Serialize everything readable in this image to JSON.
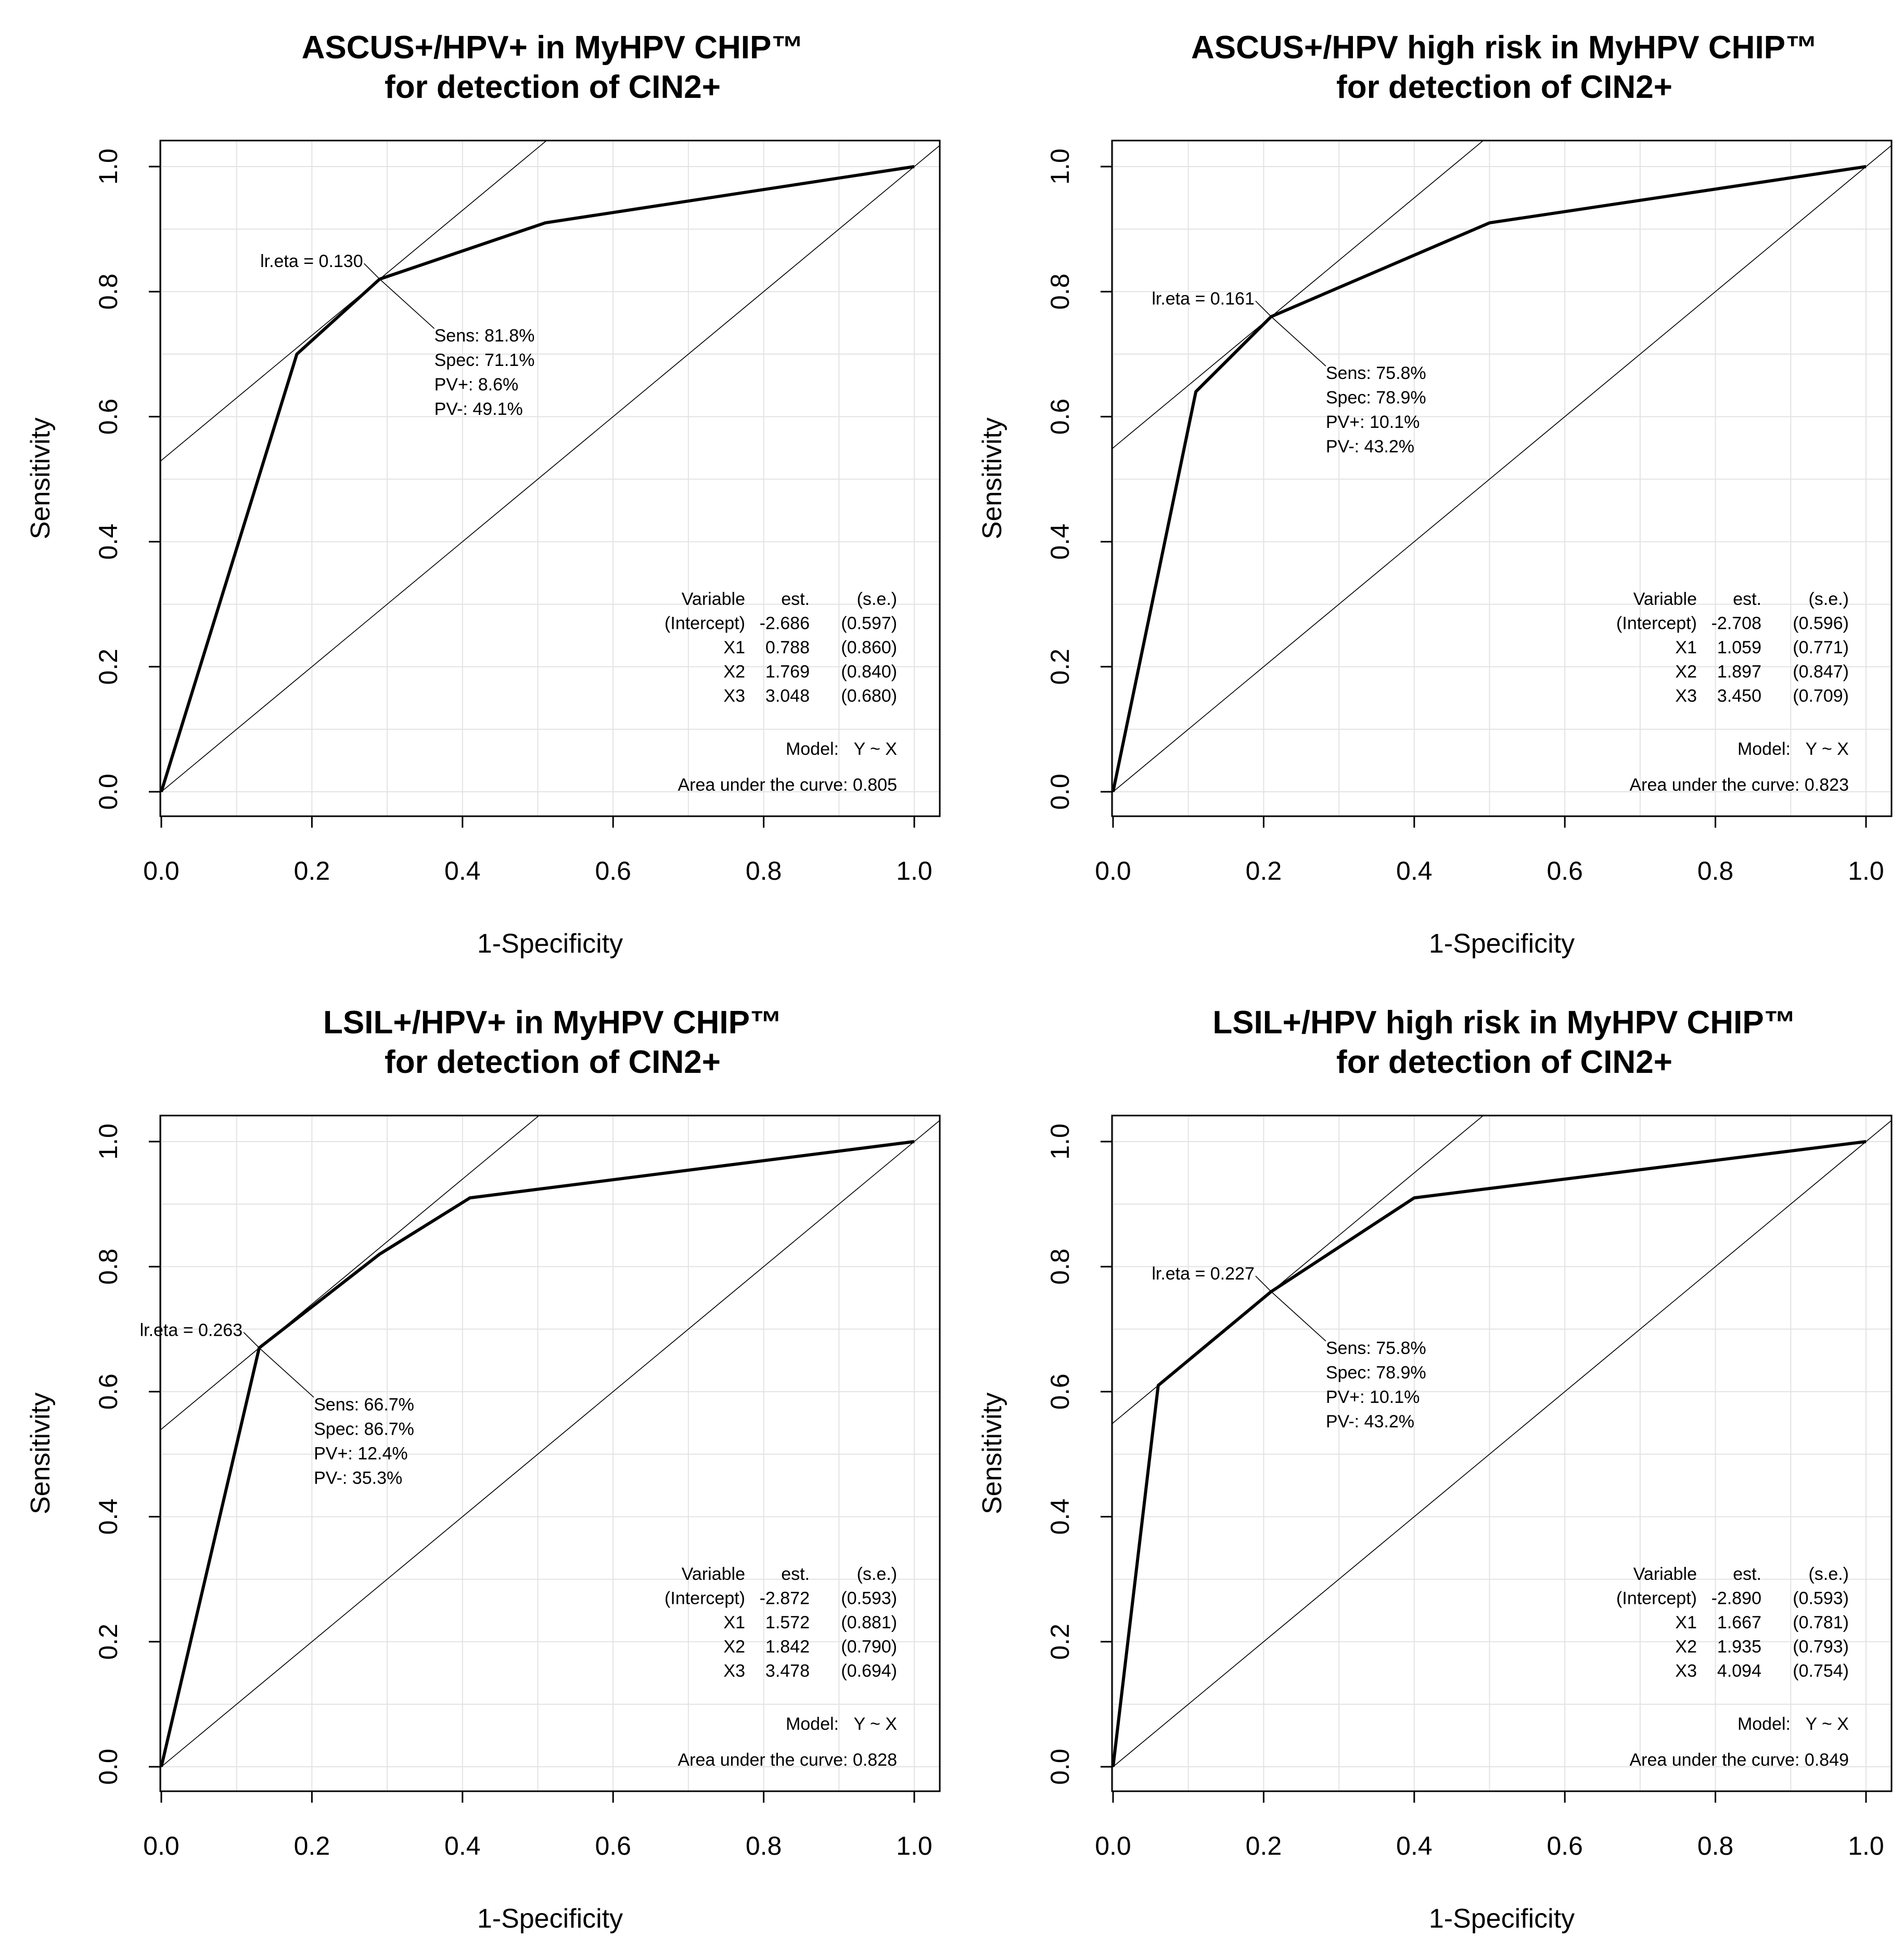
{
  "chart_data": [
    {
      "type": "line",
      "title": [
        "ASCUS+/HPV+ in MyHPV CHIP™",
        "for detection of CIN2+"
      ],
      "xlabel": "1-Specificity",
      "ylabel": "Sensitivity",
      "xlim": [
        0,
        1
      ],
      "ylim": [
        0,
        1
      ],
      "ticks": [
        "0.0",
        "0.2",
        "0.4",
        "0.6",
        "0.8",
        "1.0"
      ],
      "grid": true,
      "roc_curve": {
        "x": [
          0,
          0.18,
          0.29,
          0.51,
          1.0
        ],
        "y": [
          0,
          0.7,
          0.82,
          0.91,
          1.0
        ]
      },
      "cutoff_point": {
        "x": 0.29,
        "y": 0.82
      },
      "cutoff_label": "lr.eta = 0.130",
      "cutoff_stats": [
        "Sens: 81.8%",
        "Spec: 71.1%",
        "PV+: 8.6%",
        "PV-: 49.1%"
      ],
      "table_header": [
        "Variable",
        "est.",
        "(s.e.)"
      ],
      "table_rows": [
        [
          "(Intercept)",
          "-2.686",
          "(0.597)"
        ],
        [
          "X1",
          "0.788",
          "(0.860)"
        ],
        [
          "X2",
          "1.769",
          "(0.840)"
        ],
        [
          "X3",
          "3.048",
          "(0.680)"
        ]
      ],
      "model_label": "Model:",
      "model_value": "Y ~ X",
      "auc_text": "Area under the curve: 0.805"
    },
    {
      "type": "line",
      "title": [
        "ASCUS+/HPV high risk in MyHPV CHIP™",
        "for detection of CIN2+"
      ],
      "xlabel": "1-Specificity",
      "ylabel": "Sensitivity",
      "xlim": [
        0,
        1
      ],
      "ylim": [
        0,
        1
      ],
      "ticks": [
        "0.0",
        "0.2",
        "0.4",
        "0.6",
        "0.8",
        "1.0"
      ],
      "grid": true,
      "roc_curve": {
        "x": [
          0,
          0.11,
          0.21,
          0.5,
          1.0
        ],
        "y": [
          0,
          0.64,
          0.76,
          0.91,
          1.0
        ]
      },
      "cutoff_point": {
        "x": 0.21,
        "y": 0.76
      },
      "cutoff_label": "lr.eta = 0.161",
      "cutoff_stats": [
        "Sens: 75.8%",
        "Spec: 78.9%",
        "PV+: 10.1%",
        "PV-: 43.2%"
      ],
      "table_header": [
        "Variable",
        "est.",
        "(s.e.)"
      ],
      "table_rows": [
        [
          "(Intercept)",
          "-2.708",
          "(0.596)"
        ],
        [
          "X1",
          "1.059",
          "(0.771)"
        ],
        [
          "X2",
          "1.897",
          "(0.847)"
        ],
        [
          "X3",
          "3.450",
          "(0.709)"
        ]
      ],
      "model_label": "Model:",
      "model_value": "Y ~ X",
      "auc_text": "Area under the curve: 0.823"
    },
    {
      "type": "line",
      "title": [
        "LSIL+/HPV+ in MyHPV CHIP™",
        "for detection of CIN2+"
      ],
      "xlabel": "1-Specificity",
      "ylabel": "Sensitivity",
      "xlim": [
        0,
        1
      ],
      "ylim": [
        0,
        1
      ],
      "ticks": [
        "0.0",
        "0.2",
        "0.4",
        "0.6",
        "0.8",
        "1.0"
      ],
      "grid": true,
      "roc_curve": {
        "x": [
          0,
          0.13,
          0.29,
          0.41,
          1.0
        ],
        "y": [
          0,
          0.67,
          0.82,
          0.91,
          1.0
        ]
      },
      "cutoff_point": {
        "x": 0.13,
        "y": 0.67
      },
      "cutoff_label": "lr.eta = 0.263",
      "cutoff_stats": [
        "Sens: 66.7%",
        "Spec: 86.7%",
        "PV+: 12.4%",
        "PV-: 35.3%"
      ],
      "table_header": [
        "Variable",
        "est.",
        "(s.e.)"
      ],
      "table_rows": [
        [
          "(Intercept)",
          "-2.872",
          "(0.593)"
        ],
        [
          "X1",
          "1.572",
          "(0.881)"
        ],
        [
          "X2",
          "1.842",
          "(0.790)"
        ],
        [
          "X3",
          "3.478",
          "(0.694)"
        ]
      ],
      "model_label": "Model:",
      "model_value": "Y ~ X",
      "auc_text": "Area under the curve: 0.828"
    },
    {
      "type": "line",
      "title": [
        "LSIL+/HPV high risk in MyHPV CHIP™",
        "for detection of CIN2+"
      ],
      "xlabel": "1-Specificity",
      "ylabel": "Sensitivity",
      "xlim": [
        0,
        1
      ],
      "ylim": [
        0,
        1
      ],
      "ticks": [
        "0.0",
        "0.2",
        "0.4",
        "0.6",
        "0.8",
        "1.0"
      ],
      "grid": true,
      "roc_curve": {
        "x": [
          0,
          0.06,
          0.21,
          0.4,
          1.0
        ],
        "y": [
          0,
          0.61,
          0.76,
          0.91,
          1.0
        ]
      },
      "cutoff_point": {
        "x": 0.21,
        "y": 0.76
      },
      "cutoff_label": "lr.eta = 0.227",
      "cutoff_stats": [
        "Sens: 75.8%",
        "Spec: 78.9%",
        "PV+: 10.1%",
        "PV-: 43.2%"
      ],
      "table_header": [
        "Variable",
        "est.",
        "(s.e.)"
      ],
      "table_rows": [
        [
          "(Intercept)",
          "-2.890",
          "(0.593)"
        ],
        [
          "X1",
          "1.667",
          "(0.781)"
        ],
        [
          "X2",
          "1.935",
          "(0.793)"
        ],
        [
          "X3",
          "4.094",
          "(0.754)"
        ]
      ],
      "model_label": "Model:",
      "model_value": "Y ~ X",
      "auc_text": "Area under the curve: 0.849"
    }
  ]
}
